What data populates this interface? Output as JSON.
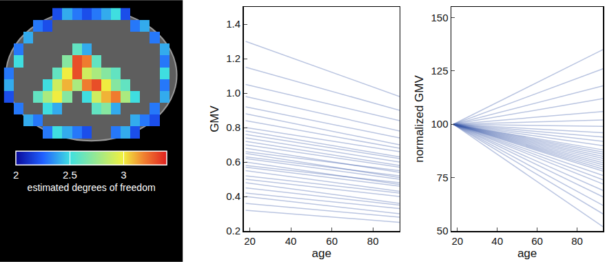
{
  "chart_data": [
    {
      "type": "heatmap",
      "tick_labels": false,
      "cells": [
        [
          null,
          null,
          null,
          null,
          null,
          2.2,
          2.4,
          2.3,
          2.2,
          2.3,
          2.4,
          2.5,
          2.2,
          null,
          null,
          null,
          null,
          null
        ],
        [
          null,
          null,
          null,
          2.3,
          2.2,
          null,
          null,
          null,
          null,
          null,
          null,
          null,
          null,
          2.3,
          2.4,
          null,
          null,
          null
        ],
        [
          null,
          null,
          2.4,
          null,
          null,
          null,
          null,
          null,
          null,
          null,
          null,
          null,
          null,
          null,
          null,
          2.3,
          null,
          null
        ],
        [
          null,
          2.3,
          null,
          null,
          null,
          null,
          null,
          2.6,
          2.4,
          null,
          null,
          null,
          null,
          null,
          null,
          null,
          2.4,
          null
        ],
        [
          null,
          2.5,
          null,
          null,
          null,
          null,
          2.7,
          3.3,
          3.2,
          2.6,
          null,
          null,
          null,
          null,
          null,
          null,
          2.3,
          null
        ],
        [
          2.3,
          null,
          null,
          null,
          null,
          2.6,
          3.0,
          3.3,
          2.9,
          2.8,
          2.7,
          2.6,
          null,
          null,
          null,
          null,
          2.5,
          null
        ],
        [
          2.4,
          null,
          null,
          null,
          2.5,
          2.9,
          3.1,
          2.8,
          3.2,
          3.3,
          3.0,
          2.7,
          2.6,
          null,
          null,
          null,
          2.3,
          null
        ],
        [
          2.2,
          null,
          null,
          2.6,
          2.8,
          3.0,
          2.7,
          null,
          2.5,
          2.9,
          3.1,
          3.2,
          2.8,
          2.5,
          null,
          null,
          2.4,
          null
        ],
        [
          null,
          2.3,
          null,
          null,
          2.5,
          2.4,
          null,
          null,
          null,
          2.6,
          2.7,
          2.4,
          null,
          null,
          null,
          2.3,
          null,
          null
        ],
        [
          null,
          null,
          2.4,
          2.3,
          null,
          null,
          null,
          null,
          null,
          null,
          null,
          null,
          null,
          2.4,
          2.3,
          2.2,
          null,
          null
        ],
        [
          null,
          null,
          null,
          null,
          2.3,
          2.5,
          2.4,
          2.3,
          2.2,
          null,
          null,
          2.3,
          2.4,
          2.2,
          null,
          null,
          null,
          null
        ],
        [
          null,
          null,
          null,
          null,
          null,
          null,
          null,
          null,
          null,
          null,
          null,
          null,
          null,
          null,
          null,
          null,
          null,
          null
        ]
      ],
      "colorbar": {
        "range": [
          2,
          3.4
        ],
        "ticks": [
          2,
          2.5,
          3
        ],
        "title": "estimated degrees of freedom"
      }
    },
    {
      "type": "line",
      "xlabel": "age",
      "ylabel": "GMV",
      "color": "#3a5aa8",
      "x": [
        18,
        93
      ],
      "xlim": [
        17,
        93
      ],
      "xticks": [
        20,
        40,
        60,
        80
      ],
      "ylim": [
        0.2,
        1.5
      ],
      "yticks": [
        0.2,
        0.4,
        0.6,
        0.8,
        {
          "value": 1,
          "label": "1.0"
        },
        1.2,
        1.4
      ],
      "series": [
        {
          "values": [
            0.32,
            0.25
          ]
        },
        {
          "values": [
            0.36,
            0.28
          ]
        },
        {
          "values": [
            0.4,
            0.3
          ]
        },
        {
          "values": [
            0.42,
            0.33
          ]
        },
        {
          "values": [
            0.45,
            0.35
          ]
        },
        {
          "values": [
            0.48,
            0.36
          ]
        },
        {
          "values": [
            0.5,
            0.4
          ]
        },
        {
          "values": [
            0.52,
            0.42
          ]
        },
        {
          "values": [
            0.55,
            0.43
          ]
        },
        {
          "values": [
            0.57,
            0.46
          ]
        },
        {
          "values": [
            0.58,
            0.48
          ]
        },
        {
          "values": [
            0.6,
            0.47
          ]
        },
        {
          "values": [
            0.62,
            0.5
          ]
        },
        {
          "values": [
            0.63,
            0.52
          ]
        },
        {
          "values": [
            0.65,
            0.51
          ]
        },
        {
          "values": [
            0.66,
            0.55
          ]
        },
        {
          "values": [
            0.68,
            0.54
          ]
        },
        {
          "values": [
            0.7,
            0.57
          ]
        },
        {
          "values": [
            0.72,
            0.58
          ]
        },
        {
          "values": [
            0.74,
            0.6
          ]
        },
        {
          "values": [
            0.76,
            0.62
          ]
        },
        {
          "values": [
            0.78,
            0.63
          ]
        },
        {
          "values": [
            0.8,
            0.66
          ]
        },
        {
          "values": [
            0.84,
            0.68
          ]
        },
        {
          "values": [
            0.88,
            0.7
          ]
        },
        {
          "values": [
            0.92,
            0.74
          ]
        },
        {
          "values": [
            0.98,
            0.78
          ]
        },
        {
          "values": [
            1.05,
            0.84
          ]
        },
        {
          "values": [
            1.15,
            0.9
          ]
        },
        {
          "values": [
            1.3,
            0.98
          ]
        }
      ]
    },
    {
      "type": "line",
      "xlabel": "age",
      "ylabel": "normalized GMV",
      "color": "#3a5aa8",
      "x": [
        18,
        93
      ],
      "xlim": [
        17,
        93
      ],
      "xticks": [
        20,
        40,
        60,
        80
      ],
      "ylim": [
        50,
        155
      ],
      "yticks": [
        50,
        75,
        100,
        125,
        150
      ],
      "series": [
        {
          "values": [
            100,
            52
          ]
        },
        {
          "values": [
            100,
            58
          ]
        },
        {
          "values": [
            100,
            62
          ]
        },
        {
          "values": [
            100,
            66
          ]
        },
        {
          "values": [
            100,
            69
          ]
        },
        {
          "values": [
            100,
            72
          ]
        },
        {
          "values": [
            100,
            74
          ]
        },
        {
          "values": [
            100,
            76
          ]
        },
        {
          "values": [
            100,
            78
          ]
        },
        {
          "values": [
            100,
            79
          ]
        },
        {
          "values": [
            100,
            80
          ]
        },
        {
          "values": [
            100,
            81
          ]
        },
        {
          "values": [
            100,
            82
          ]
        },
        {
          "values": [
            100,
            83
          ]
        },
        {
          "values": [
            100,
            84
          ]
        },
        {
          "values": [
            100,
            85
          ]
        },
        {
          "values": [
            100,
            86
          ]
        },
        {
          "values": [
            100,
            87
          ]
        },
        {
          "values": [
            100,
            88
          ]
        },
        {
          "values": [
            100,
            90
          ]
        },
        {
          "values": [
            100,
            92
          ]
        },
        {
          "values": [
            100,
            94
          ]
        },
        {
          "values": [
            100,
            96
          ]
        },
        {
          "values": [
            100,
            99
          ]
        },
        {
          "values": [
            100,
            102
          ]
        },
        {
          "values": [
            100,
            106
          ]
        },
        {
          "values": [
            100,
            112
          ]
        },
        {
          "values": [
            100,
            118
          ]
        },
        {
          "values": [
            100,
            126
          ]
        },
        {
          "values": [
            100,
            135
          ]
        }
      ]
    }
  ]
}
